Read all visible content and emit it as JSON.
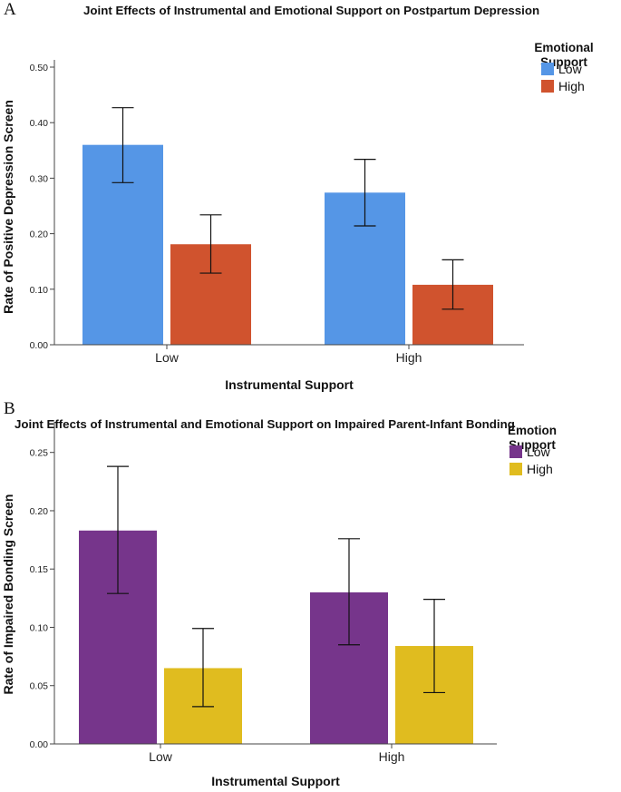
{
  "panels": {
    "a": {
      "letter": "A"
    },
    "b": {
      "letter": "B"
    }
  },
  "chart_data": [
    {
      "type": "bar",
      "title": "Joint Effects of Instrumental and Emotional Support on Postpartum Depression",
      "xlabel": "Instrumental Support",
      "ylabel": "Rate of Positive Depression Screen",
      "categories": [
        "Low",
        "High"
      ],
      "ylim": [
        0,
        0.5
      ],
      "yticks": [
        "0.00",
        "0.10",
        "0.20",
        "0.30",
        "0.40",
        "0.50"
      ],
      "ytick_values": [
        0,
        0.1,
        0.2,
        0.3,
        0.4,
        0.5
      ],
      "legend": {
        "title_lines": [
          "Emotional",
          "Support"
        ],
        "placement": "top-right"
      },
      "grid": false,
      "series": [
        {
          "name": "Low",
          "color": "#5596e6",
          "values": [
            0.36,
            0.274
          ],
          "err_low": [
            0.292,
            0.214
          ],
          "err_high": [
            0.427,
            0.334
          ]
        },
        {
          "name": "High",
          "color": "#d0532e",
          "values": [
            0.181,
            0.108
          ],
          "err_low": [
            0.129,
            0.064
          ],
          "err_high": [
            0.234,
            0.153
          ]
        }
      ]
    },
    {
      "type": "bar",
      "title": "Joint Effects of Instrumental and Emotional Support on Impaired Parent-Infant Bonding",
      "xlabel": "Instrumental Support",
      "ylabel": "Rate of Impaired Bonding Screen",
      "categories": [
        "Low",
        "High"
      ],
      "ylim": [
        0,
        0.27
      ],
      "yticks": [
        "0.00",
        "0.05",
        "0.10",
        "0.15",
        "0.20",
        "0.25"
      ],
      "ytick_values": [
        0,
        0.05,
        0.1,
        0.15,
        0.2,
        0.25
      ],
      "legend": {
        "title_lines": [
          "Emotion",
          "Support"
        ],
        "placement": "top-right"
      },
      "grid": false,
      "series": [
        {
          "name": "Low",
          "color": "#76358b",
          "values": [
            0.183,
            0.13
          ],
          "err_low": [
            0.129,
            0.085
          ],
          "err_high": [
            0.238,
            0.176
          ]
        },
        {
          "name": "High",
          "color": "#e0bc1f",
          "values": [
            0.065,
            0.084
          ],
          "err_low": [
            0.032,
            0.044
          ],
          "err_high": [
            0.099,
            0.124
          ]
        }
      ]
    }
  ]
}
